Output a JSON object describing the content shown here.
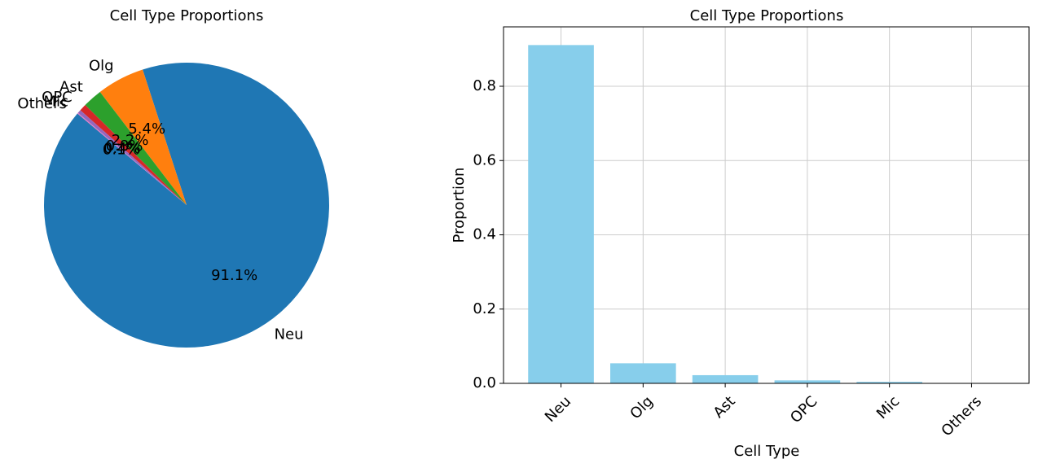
{
  "chart_data": [
    {
      "type": "pie",
      "title": "Cell Type Proportions",
      "categories": [
        "Neu",
        "Olg",
        "Ast",
        "OPC",
        "Mic",
        "Others"
      ],
      "values": [
        0.911,
        0.054,
        0.022,
        0.008,
        0.004,
        0.001
      ],
      "percent_labels": [
        "91.1%",
        "5.4%",
        "2.2%",
        "0.8%",
        "0.4%",
        "0.1%"
      ],
      "colors": [
        "#1f77b4",
        "#ff7f0e",
        "#2ca02c",
        "#d62728",
        "#9467bd",
        "#e377c2"
      ],
      "start_angle_deg": 140,
      "direction": "counterclockwise"
    },
    {
      "type": "bar",
      "title": "Cell Type Proportions",
      "xlabel": "Cell Type",
      "ylabel": "Proportion",
      "categories": [
        "Neu",
        "Olg",
        "Ast",
        "OPC",
        "Mic",
        "Others"
      ],
      "values": [
        0.911,
        0.054,
        0.022,
        0.008,
        0.004,
        0.001
      ],
      "ylim": [
        0,
        0.96
      ],
      "yticks": [
        0.0,
        0.2,
        0.4,
        0.6,
        0.8
      ],
      "ytick_labels": [
        "0.0",
        "0.2",
        "0.4",
        "0.6",
        "0.8"
      ],
      "bar_color": "#87ceeb",
      "grid": true
    }
  ]
}
